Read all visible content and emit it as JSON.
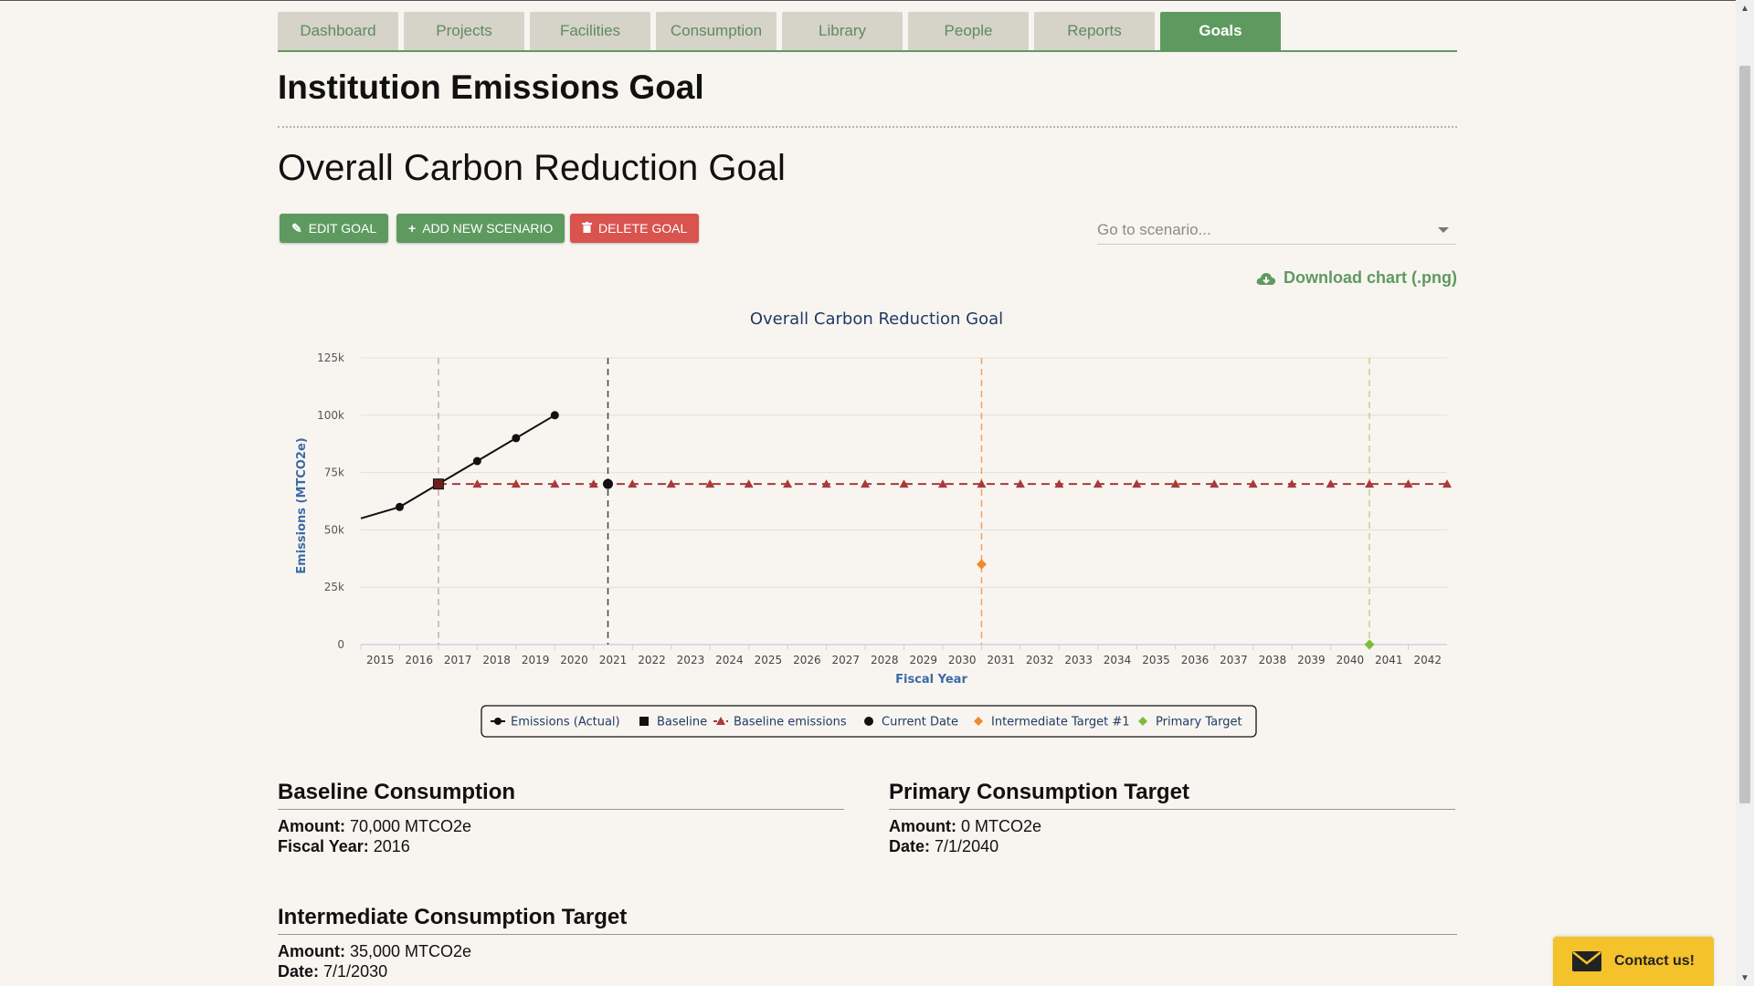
{
  "nav": {
    "tabs": [
      "Dashboard",
      "Projects",
      "Facilities",
      "Consumption",
      "Library",
      "People",
      "Reports",
      "Goals"
    ],
    "active": "Goals",
    "accent": "#5e9a60"
  },
  "page_title": "Institution Emissions Goal",
  "goal_title": "Overall Carbon Reduction Goal",
  "actions": {
    "edit": "EDIT GOAL",
    "add": "ADD NEW SCENARIO",
    "delete": "DELETE GOAL"
  },
  "scenario": {
    "placeholder": "Go to scenario..."
  },
  "download_label": "Download chart (.png)",
  "chart_data": {
    "type": "line",
    "title": "Overall Carbon Reduction Goal",
    "xlabel": "Fiscal Year",
    "ylabel": "Emissions (MTCO2e)",
    "ylim": [
      0,
      125000
    ],
    "yticks": [
      0,
      25000,
      50000,
      75000,
      100000,
      125000
    ],
    "ytick_labels": [
      "0",
      "25k",
      "50k",
      "75k",
      "100k",
      "125k"
    ],
    "categories": [
      "2015",
      "2016",
      "2017",
      "2018",
      "2019",
      "2020",
      "2021",
      "2022",
      "2023",
      "2024",
      "2025",
      "2026",
      "2027",
      "2028",
      "2029",
      "2030",
      "2031",
      "2032",
      "2033",
      "2034",
      "2035",
      "2036",
      "2037",
      "2038",
      "2039",
      "2040",
      "2041",
      "2042"
    ],
    "series": [
      {
        "name": "Emissions (Actual)",
        "color": "#111111",
        "x": [
          2014.5,
          2015.5,
          2016.5,
          2017.5,
          2018.5,
          2019.5
        ],
        "values": [
          55000,
          60000,
          70000,
          80000,
          90000,
          100000
        ]
      },
      {
        "name": "Baseline",
        "color": "#111111",
        "x": [
          2016.5
        ],
        "values": [
          70000
        ]
      },
      {
        "name": "Baseline emissions",
        "color": "#a83a3a",
        "x": [
          2016.5,
          2017.5,
          2018.5,
          2019.5,
          2020.5,
          2021.5,
          2022.5,
          2023.5,
          2024.5,
          2025.5,
          2026.5,
          2027.5,
          2028.5,
          2029.5,
          2030.5,
          2031.5,
          2032.5,
          2033.5,
          2034.5,
          2035.5,
          2036.5,
          2037.5,
          2038.5,
          2039.5,
          2040.5,
          2041.5,
          2042.5
        ],
        "values": [
          70000,
          70000,
          70000,
          70000,
          70000,
          70000,
          70000,
          70000,
          70000,
          70000,
          70000,
          70000,
          70000,
          70000,
          70000,
          70000,
          70000,
          70000,
          70000,
          70000,
          70000,
          70000,
          70000,
          70000,
          70000,
          70000,
          70000
        ]
      },
      {
        "name": "Current Date",
        "color": "#111111",
        "x": [
          2020.87
        ],
        "values": [
          70000
        ]
      },
      {
        "name": "Intermediate Target #1",
        "color": "#f08a2b",
        "x": [
          2030.5
        ],
        "values": [
          35000
        ]
      },
      {
        "name": "Primary Target",
        "color": "#7dbb3c",
        "x": [
          2040.5
        ],
        "values": [
          0
        ]
      }
    ],
    "vertical_lines": [
      {
        "x": 2016.5,
        "color": "#b9b4ac"
      },
      {
        "x": 2020.87,
        "color": "#444444"
      },
      {
        "x": 2030.5,
        "color": "#f2a063"
      },
      {
        "x": 2040.5,
        "color": "#b3d98a"
      }
    ],
    "legend_position": "bottom-center",
    "grid": true
  },
  "baseline": {
    "heading": "Baseline Consumption",
    "amount_label": "Amount:",
    "amount": "70,000 MTCO2e",
    "year_label": "Fiscal Year:",
    "year": "2016"
  },
  "primary": {
    "heading": "Primary Consumption Target",
    "amount_label": "Amount:",
    "amount": "0 MTCO2e",
    "date_label": "Date:",
    "date": "7/1/2040"
  },
  "intermediate": {
    "heading": "Intermediate Consumption Target",
    "amount_label": "Amount:",
    "amount": "35,000 MTCO2e",
    "date_label": "Date:",
    "date": "7/1/2030"
  },
  "contact_label": "Contact us!"
}
